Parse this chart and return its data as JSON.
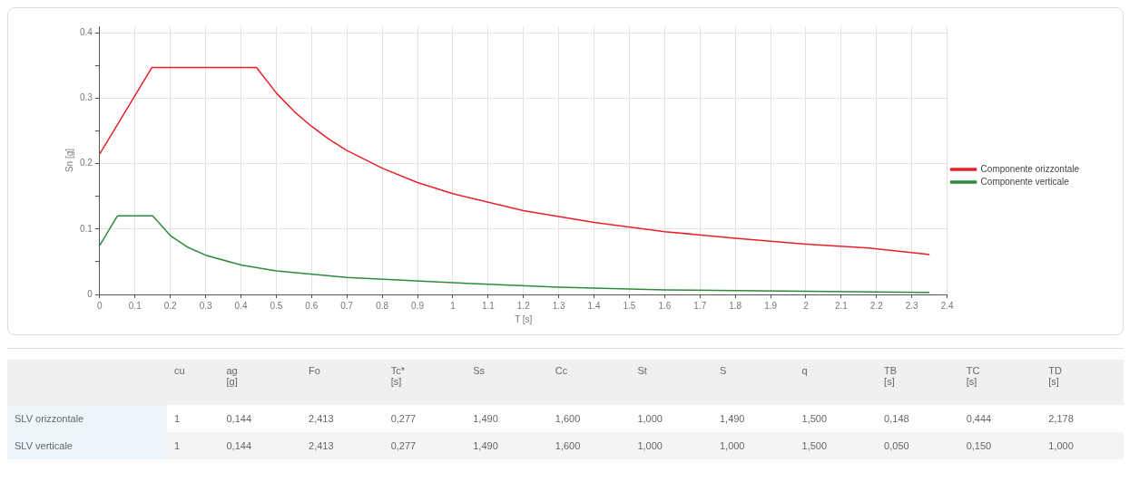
{
  "chart_data": [
    {
      "type": "line",
      "xlabel": "T [s]",
      "ylabel": "Sn [g]",
      "xlim": [
        0,
        2.4
      ],
      "xticks": [
        0,
        0.1,
        0.2,
        0.3,
        0.4,
        0.5,
        0.6,
        0.7,
        0.8,
        0.9,
        1,
        1.1,
        1.2,
        1.3,
        1.4,
        1.5,
        1.6,
        1.7,
        1.8,
        1.9,
        2,
        2.1,
        2.2,
        2.3,
        2.4
      ],
      "ylim": [
        0,
        0.41
      ],
      "yticks": [
        0,
        {
          "value": 0.05,
          "label": null
        },
        0.1,
        {
          "value": 0.15,
          "label": null
        },
        0.2,
        {
          "value": 0.25,
          "label": null
        },
        0.3,
        {
          "value": 0.35,
          "label": null
        },
        0.4
      ],
      "grid": true,
      "legend": "right",
      "marker": "none",
      "line_style": "solid",
      "series": [
        {
          "name": "Componente orizzontale",
          "color": "#e8202a",
          "x": [
            0,
            0.148,
            0.444,
            0.5,
            0.55,
            0.6,
            0.65,
            0.7,
            0.8,
            0.9,
            1.0,
            1.2,
            1.4,
            1.6,
            1.8,
            2.0,
            2.178,
            2.35
          ],
          "values": [
            0.215,
            0.347,
            0.347,
            0.308,
            0.28,
            0.257,
            0.237,
            0.22,
            0.193,
            0.171,
            0.154,
            0.128,
            0.11,
            0.096,
            0.086,
            0.077,
            0.071,
            0.061
          ]
        },
        {
          "name": "Componente verticale",
          "color": "#2e8b3a",
          "x": [
            0,
            0.05,
            0.15,
            0.2,
            0.25,
            0.3,
            0.4,
            0.5,
            0.7,
            1.0,
            1.3,
            1.6,
            2.0,
            2.35
          ],
          "values": [
            0.075,
            0.12,
            0.12,
            0.09,
            0.072,
            0.06,
            0.045,
            0.036,
            0.026,
            0.018,
            0.011,
            0.007,
            0.005,
            0.003
          ]
        }
      ]
    },
    {
      "type": "other",
      "categories": [
        null,
        "cu",
        "ag\n[g]",
        "Fo",
        "Tc*\n[s]",
        "Ss",
        "Cc",
        "St",
        "S",
        "q",
        "TB\n[s]",
        "TC\n[s]",
        "TD\n[s]"
      ],
      "y_categories": [
        "SLV orizzontale",
        "SLV verticale"
      ],
      "cell_labels": [
        [
          "1",
          "0,144",
          "2,413",
          "0,277",
          "1,490",
          "1,600",
          "1,000",
          "1,490",
          "1,500",
          "0,148",
          "0,444",
          "2,178"
        ],
        [
          "1",
          "0,144",
          "2,413",
          "0,277",
          "1,490",
          "1,600",
          "1,000",
          "1,000",
          "1,500",
          "0,050",
          "0,150",
          "1,000"
        ]
      ]
    }
  ]
}
